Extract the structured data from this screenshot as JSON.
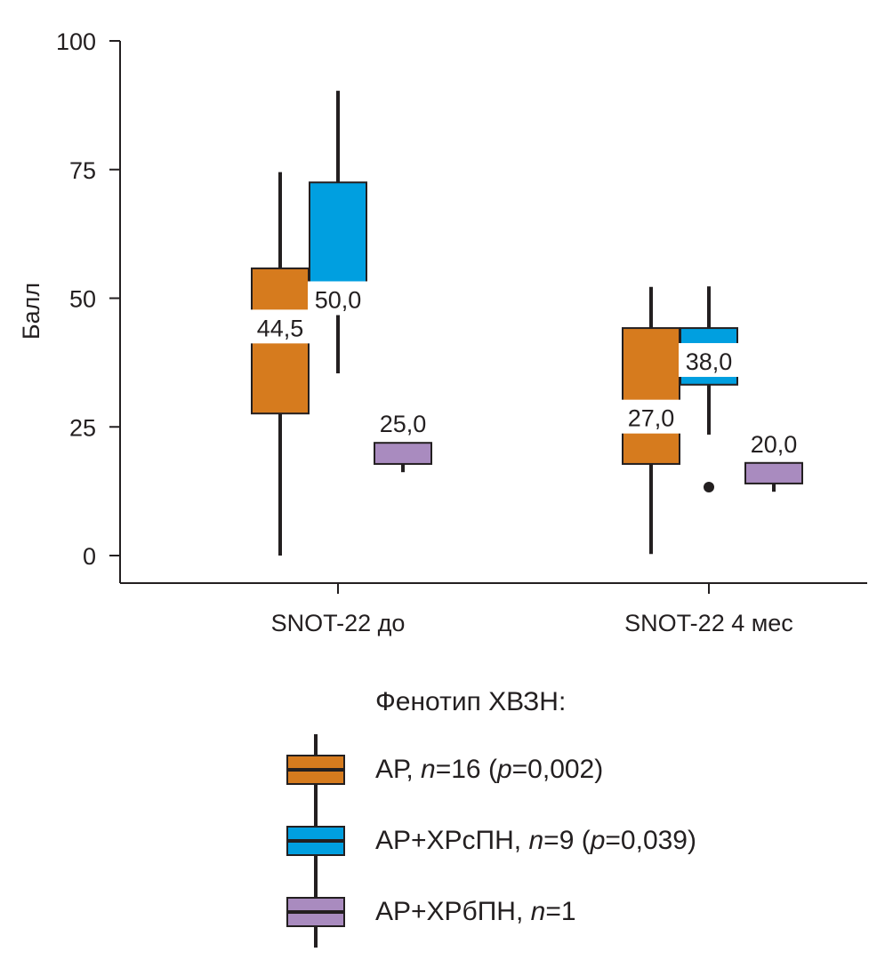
{
  "chart_data": {
    "type": "boxplot",
    "title": "",
    "xlabel": "",
    "ylabel": "Балл",
    "ylim": [
      -5,
      100
    ],
    "yticks": [
      0,
      25,
      50,
      75,
      100
    ],
    "ytick_labels": [
      "0",
      "25",
      "50",
      "75",
      "100"
    ],
    "grid": false,
    "categories": [
      "SNOT-22 до",
      "SNOT-22 4 мес"
    ],
    "legend": {
      "title": "Фенотип ХВЗН:",
      "placement": "bottom"
    },
    "series": [
      {
        "name": "АР",
        "n": "16",
        "p": "0,002",
        "color": "#d67b1e",
        "boxes": [
          {
            "whisker_low": 0,
            "q1": 27.6,
            "median": 44.5,
            "q3": 55.8,
            "whisker_high": 74.5,
            "median_label": "44,5",
            "outliers": []
          },
          {
            "whisker_low": 0.3,
            "q1": 17.8,
            "median": 27.0,
            "q3": 44.2,
            "whisker_high": 52.2,
            "median_label": "27,0",
            "outliers": []
          }
        ]
      },
      {
        "name": "АР+ХРсПН",
        "n": "9",
        "p": "0,039",
        "color": "#009fe0",
        "boxes": [
          {
            "whisker_low": 35.4,
            "q1": 47.8,
            "median": 50.0,
            "q3": 72.5,
            "whisker_high": 90.3,
            "median_label": "50,0",
            "outliers": []
          },
          {
            "whisker_low": 23.5,
            "q1": 33.2,
            "median": 38.0,
            "q3": 44.2,
            "whisker_high": 52.3,
            "median_label": "38,0",
            "outliers": [
              13.3
            ]
          }
        ]
      },
      {
        "name": "АР+ХРбПН",
        "n": "1",
        "p": null,
        "color": "#a98bbf",
        "boxes": [
          {
            "whisker_low": 16.2,
            "q1": 17.8,
            "median": 25.0,
            "q3": 21.9,
            "whisker_high": 21.9,
            "median_label": "25,0",
            "outliers": []
          },
          {
            "whisker_low": 12.4,
            "q1": 14.0,
            "median": 20.0,
            "q3": 18.0,
            "whisker_high": 18.0,
            "median_label": "20,0",
            "outliers": []
          }
        ]
      }
    ]
  }
}
